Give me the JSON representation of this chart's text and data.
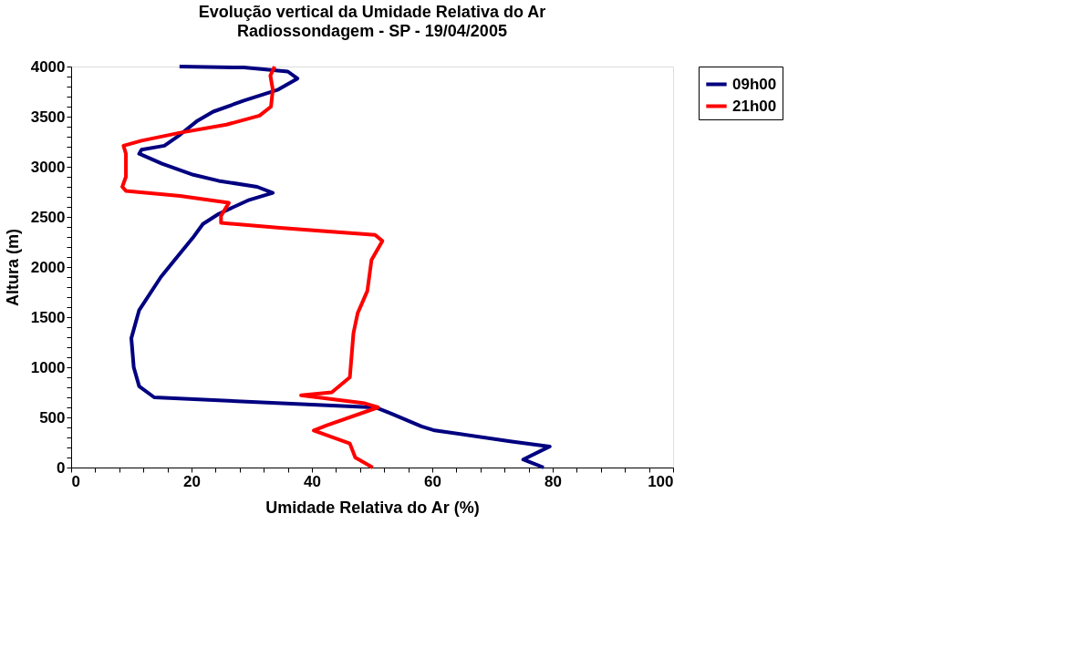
{
  "chart_data": {
    "type": "line",
    "title": "Evolução vertical da Umidade Relativa do Ar",
    "subtitle": "Radiossondagem - SP - 19/04/2005",
    "xlabel": "Umidade Relativa do Ar (%)",
    "ylabel": "Altura (m)",
    "xlim": [
      0,
      100
    ],
    "ylim": [
      0,
      4000
    ],
    "xticks": [
      0,
      {
        "value": 4,
        "label": null
      },
      {
        "value": 8,
        "label": null
      },
      {
        "value": 12,
        "label": null
      },
      {
        "value": 16,
        "label": null
      },
      20,
      {
        "value": 24,
        "label": null
      },
      {
        "value": 28,
        "label": null
      },
      {
        "value": 32,
        "label": null
      },
      {
        "value": 36,
        "label": null
      },
      40,
      {
        "value": 44,
        "label": null
      },
      {
        "value": 48,
        "label": null
      },
      {
        "value": 52,
        "label": null
      },
      {
        "value": 56,
        "label": null
      },
      60,
      {
        "value": 64,
        "label": null
      },
      {
        "value": 68,
        "label": null
      },
      {
        "value": 72,
        "label": null
      },
      {
        "value": 76,
        "label": null
      },
      80,
      {
        "value": 84,
        "label": null
      },
      {
        "value": 88,
        "label": null
      },
      {
        "value": 92,
        "label": null
      },
      {
        "value": 96,
        "label": null
      },
      100
    ],
    "yticks": [
      0,
      {
        "value": 100,
        "label": null
      },
      {
        "value": 200,
        "label": null
      },
      {
        "value": 300,
        "label": null
      },
      {
        "value": 400,
        "label": null
      },
      500,
      {
        "value": 600,
        "label": null
      },
      {
        "value": 700,
        "label": null
      },
      {
        "value": 800,
        "label": null
      },
      {
        "value": 900,
        "label": null
      },
      1000,
      {
        "value": 1100,
        "label": null
      },
      {
        "value": 1200,
        "label": null
      },
      {
        "value": 1300,
        "label": null
      },
      {
        "value": 1400,
        "label": null
      },
      1500,
      {
        "value": 1600,
        "label": null
      },
      {
        "value": 1700,
        "label": null
      },
      {
        "value": 1800,
        "label": null
      },
      {
        "value": 1900,
        "label": null
      },
      2000,
      {
        "value": 2100,
        "label": null
      },
      {
        "value": 2200,
        "label": null
      },
      {
        "value": 2300,
        "label": null
      },
      {
        "value": 2400,
        "label": null
      },
      2500,
      {
        "value": 2600,
        "label": null
      },
      {
        "value": 2700,
        "label": null
      },
      {
        "value": 2800,
        "label": null
      },
      {
        "value": 2900,
        "label": null
      },
      3000,
      {
        "value": 3100,
        "label": null
      },
      {
        "value": 3200,
        "label": null
      },
      {
        "value": 3300,
        "label": null
      },
      {
        "value": 3400,
        "label": null
      },
      3500,
      {
        "value": 3600,
        "label": null
      },
      {
        "value": 3700,
        "label": null
      },
      {
        "value": 3800,
        "label": null
      },
      {
        "value": 3900,
        "label": null
      },
      4000
    ],
    "grid": false,
    "legend": "top right",
    "marker": "none",
    "line_style": "solid",
    "series": [
      {
        "name": "09h00",
        "color": "#000080",
        "x": [
          78.5,
          75.1,
          79.5,
          73.2,
          60.4,
          58.2,
          53.1,
          51.0,
          50.1,
          24.5,
          13.8,
          11.3,
          10.4,
          10.0,
          11.3,
          14.9,
          17.2,
          20.2,
          21.9,
          24.5,
          29.6,
          33.5,
          30.9,
          24.5,
          20.3,
          15.1,
          11.3,
          11.7,
          15.5,
          18.1,
          21.0,
          23.6,
          28.7,
          34.4,
          37.6,
          36.0,
          28.7,
          18.0
        ],
        "values": [
          0,
          80,
          210,
          260,
          370,
          410,
          540,
          590,
          600,
          670,
          700,
          810,
          1000,
          1290,
          1570,
          1900,
          2070,
          2290,
          2430,
          2530,
          2670,
          2740,
          2800,
          2860,
          2920,
          3030,
          3130,
          3170,
          3210,
          3320,
          3460,
          3550,
          3660,
          3770,
          3880,
          3950,
          3990,
          4000
        ]
      },
      {
        "name": "21h00",
        "color": "#ff0000",
        "x": [
          50.1,
          47.2,
          46.3,
          40.3,
          42.4,
          51.0,
          48.8,
          38.2,
          43.3,
          46.3,
          46.9,
          47.6,
          49.2,
          49.9,
          51.7,
          50.5,
          34.7,
          24.9,
          24.9,
          26.2,
          18.1,
          9.1,
          8.5,
          9.1,
          9.1,
          8.7,
          11.7,
          18.1,
          25.8,
          31.3,
          33.2,
          33.5,
          33.1,
          33.8
        ],
        "values": [
          0,
          100,
          240,
          370,
          420,
          600,
          640,
          720,
          750,
          900,
          1340,
          1540,
          1760,
          2070,
          2260,
          2320,
          2390,
          2440,
          2510,
          2640,
          2710,
          2760,
          2800,
          2900,
          3130,
          3210,
          3260,
          3340,
          3420,
          3510,
          3600,
          3770,
          3910,
          4000
        ]
      }
    ]
  }
}
